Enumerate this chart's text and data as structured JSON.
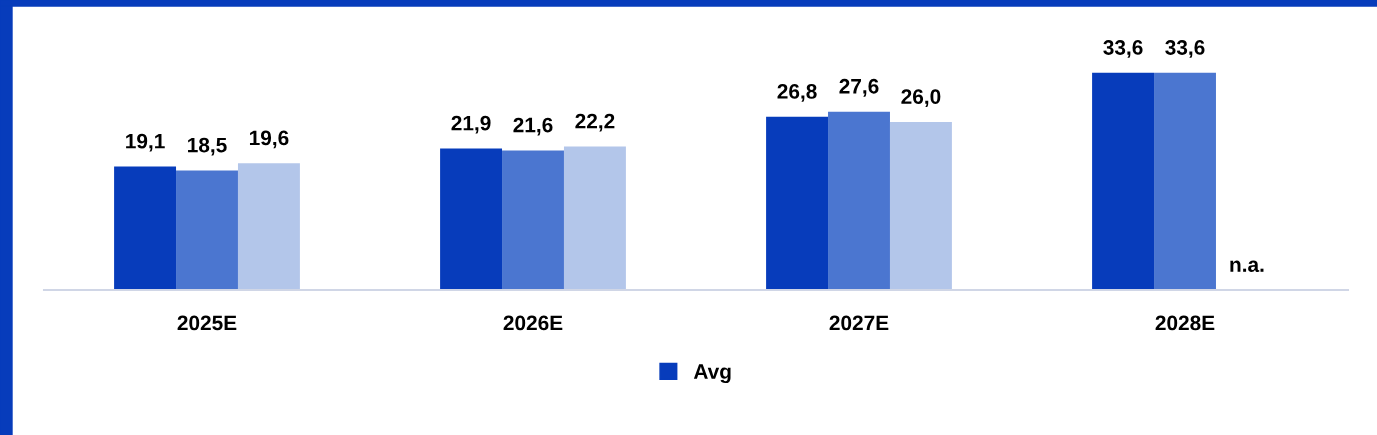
{
  "chart_data": {
    "type": "bar",
    "categories": [
      "2025E",
      "2026E",
      "2027E",
      "2028E"
    ],
    "series": [
      {
        "name": "Avg",
        "color": "#073cbb",
        "values": [
          19.1,
          21.9,
          26.8,
          33.6
        ],
        "value_labels": [
          "19,1",
          "21,9",
          "26,8",
          "33,6"
        ]
      },
      {
        "color": "#4b76d0",
        "values": [
          18.5,
          21.6,
          27.6,
          33.6
        ],
        "value_labels": [
          "18,5",
          "21,6",
          "27,6",
          "33,6"
        ]
      },
      {
        "color": "#b3c6ea",
        "values": [
          19.6,
          22.2,
          26.0,
          null
        ],
        "value_labels": [
          "19,6",
          "22,2",
          "26,0",
          "n.a."
        ]
      }
    ],
    "tick_labels": "x",
    "grid": false,
    "legend": "bottom"
  }
}
